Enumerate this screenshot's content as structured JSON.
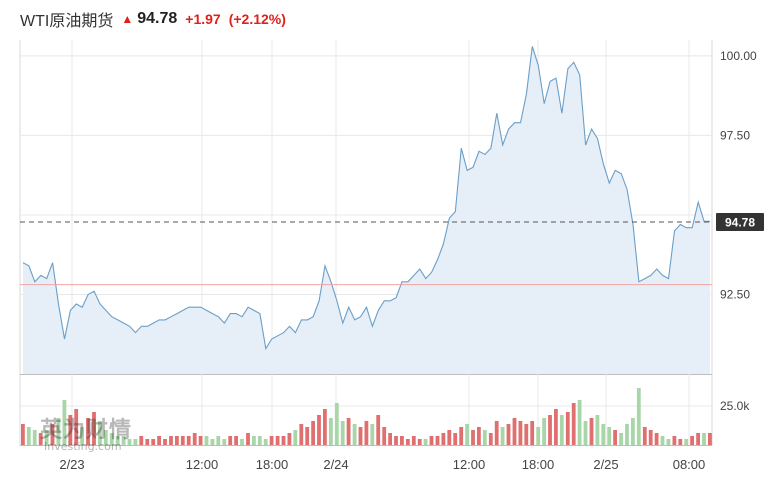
{
  "header": {
    "title": "WTI原油期货",
    "arrow": "▲",
    "price": "94.78",
    "change": "+1.97",
    "change_pct": "(+2.12%)"
  },
  "colors": {
    "up": "#e0201b",
    "line": "#6a9fc8",
    "area": "#e6eef7",
    "vol_up": "#e06f6f",
    "vol_down": "#a8d6a8",
    "grid": "#e8e8e8",
    "ref_line": "#f2a5a5",
    "price_tag": "#333333"
  },
  "watermark": {
    "cn": "英为财情",
    "en": "Investing.com"
  },
  "chart_data": {
    "type": "area",
    "price_axis": {
      "ticks": [
        "100.00",
        "97.50",
        "92.50"
      ],
      "ylim": [
        90.0,
        100.5
      ]
    },
    "volume_axis": {
      "ticks": [
        "25.0k"
      ]
    },
    "x_tick_labels": [
      "2/23",
      "12:00",
      "18:00",
      "2/24",
      "12:00",
      "18:00",
      "2/25",
      "08:00"
    ],
    "current_price": 94.78,
    "current_price_label": "94.78",
    "previous_close": 92.81,
    "price_series": [
      93.5,
      93.4,
      92.9,
      93.1,
      93.0,
      93.5,
      92.2,
      91.1,
      92.0,
      92.2,
      92.1,
      92.5,
      92.6,
      92.2,
      92.0,
      91.8,
      91.7,
      91.6,
      91.5,
      91.3,
      91.5,
      91.5,
      91.6,
      91.7,
      91.7,
      91.8,
      91.9,
      92.0,
      92.1,
      92.1,
      92.1,
      92.0,
      91.9,
      91.8,
      91.6,
      91.9,
      91.9,
      91.8,
      92.1,
      92.0,
      91.9,
      90.8,
      91.1,
      91.2,
      91.3,
      91.5,
      91.3,
      91.7,
      91.7,
      91.8,
      92.3,
      93.4,
      92.9,
      92.3,
      91.6,
      92.1,
      91.7,
      91.8,
      92.1,
      91.5,
      92.0,
      92.3,
      92.3,
      92.4,
      92.9,
      92.9,
      93.1,
      93.3,
      93.0,
      93.2,
      93.6,
      94.1,
      94.9,
      95.1,
      97.1,
      96.4,
      96.5,
      97.0,
      96.9,
      97.1,
      98.2,
      97.2,
      97.7,
      97.9,
      97.9,
      98.8,
      100.3,
      99.7,
      98.5,
      99.2,
      99.3,
      98.2,
      99.6,
      99.8,
      99.4,
      97.2,
      97.7,
      97.4,
      96.6,
      96.0,
      96.4,
      96.3,
      95.8,
      94.7,
      92.9,
      93.0,
      93.1,
      93.3,
      93.1,
      93.0,
      94.5,
      94.7,
      94.6,
      94.6,
      95.4,
      94.8,
      94.8
    ],
    "volume_series": [
      7,
      6,
      5,
      4,
      5,
      7,
      9,
      15,
      10,
      12,
      6,
      9,
      11,
      8,
      5,
      4,
      3,
      3,
      2,
      2,
      3,
      2,
      2,
      3,
      2,
      3,
      3,
      3,
      3,
      4,
      3,
      3,
      2,
      3,
      2,
      3,
      3,
      2,
      4,
      3,
      3,
      2,
      3,
      3,
      3,
      4,
      5,
      7,
      6,
      8,
      10,
      12,
      9,
      14,
      8,
      9,
      7,
      6,
      8,
      7,
      10,
      6,
      4,
      3,
      3,
      2,
      3,
      2,
      2,
      3,
      3,
      4,
      5,
      4,
      6,
      7,
      5,
      6,
      5,
      4,
      8,
      6,
      7,
      9,
      8,
      7,
      8,
      6,
      9,
      10,
      12,
      10,
      11,
      14,
      15,
      8,
      9,
      10,
      7,
      6,
      5,
      4,
      7,
      9,
      19,
      6,
      5,
      4,
      3,
      2,
      3,
      2,
      2,
      3,
      4,
      4,
      4
    ]
  }
}
